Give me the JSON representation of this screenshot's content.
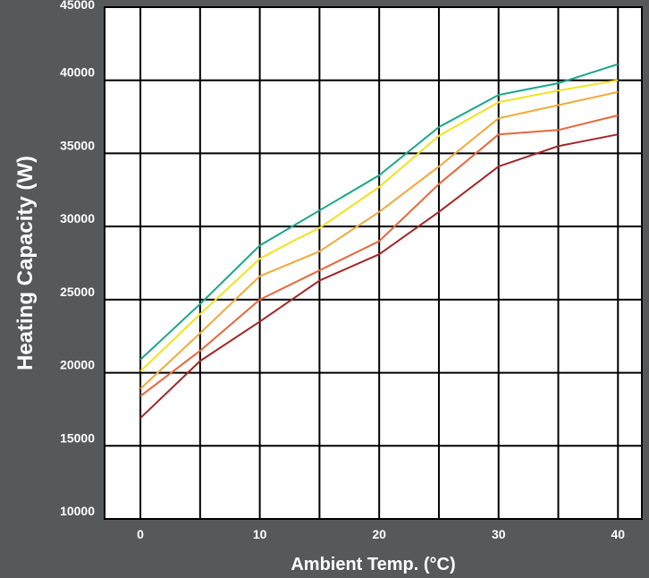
{
  "chart_data": {
    "type": "line",
    "title": "",
    "xlabel": "Ambient Temp. (°C)",
    "ylabel": "Heating Capacity (W)",
    "xlim": [
      -3,
      42
    ],
    "ylim": [
      10000,
      45000
    ],
    "x_ticks": [
      "0",
      "10",
      "20",
      "30",
      "40"
    ],
    "x_tick_values": [
      0,
      10,
      20,
      30,
      40
    ],
    "y_ticks": [
      "10000",
      "15000",
      "20000",
      "25000",
      "30000",
      "35000",
      "40000",
      "45000"
    ],
    "y_tick_values": [
      10000,
      15000,
      20000,
      25000,
      30000,
      35000,
      40000,
      45000
    ],
    "grid": true,
    "background": "#56585a",
    "plot_background": "#ffffff",
    "series": [
      {
        "color": "#1aa68a",
        "x": [
          0,
          5,
          10,
          15,
          20,
          25,
          30,
          35,
          40
        ],
        "y": [
          20900,
          24700,
          28700,
          31100,
          33500,
          36800,
          39000,
          39800,
          41100
        ]
      },
      {
        "color": "#f4e219",
        "x": [
          0,
          5,
          10,
          13,
          15,
          20,
          25,
          30,
          35,
          40
        ],
        "y": [
          20100,
          24000,
          27800,
          29100,
          29900,
          32700,
          36200,
          38500,
          39300,
          40000
        ]
      },
      {
        "color": "#f2a93b",
        "x": [
          0,
          5,
          10,
          15,
          20,
          25,
          30,
          35,
          40
        ],
        "y": [
          18900,
          22700,
          26600,
          28300,
          31000,
          34100,
          37400,
          38300,
          39200
        ]
      },
      {
        "color": "#e7673a",
        "x": [
          0,
          5,
          10,
          15,
          20,
          25,
          30,
          35,
          40
        ],
        "y": [
          18400,
          21500,
          25000,
          27000,
          29000,
          32900,
          36300,
          36600,
          37600
        ]
      },
      {
        "color": "#a32626",
        "x": [
          0,
          5,
          10,
          15,
          20,
          25,
          30,
          35,
          40
        ],
        "y": [
          16900,
          20800,
          23500,
          26300,
          28100,
          31000,
          34100,
          35500,
          36300
        ]
      }
    ]
  }
}
